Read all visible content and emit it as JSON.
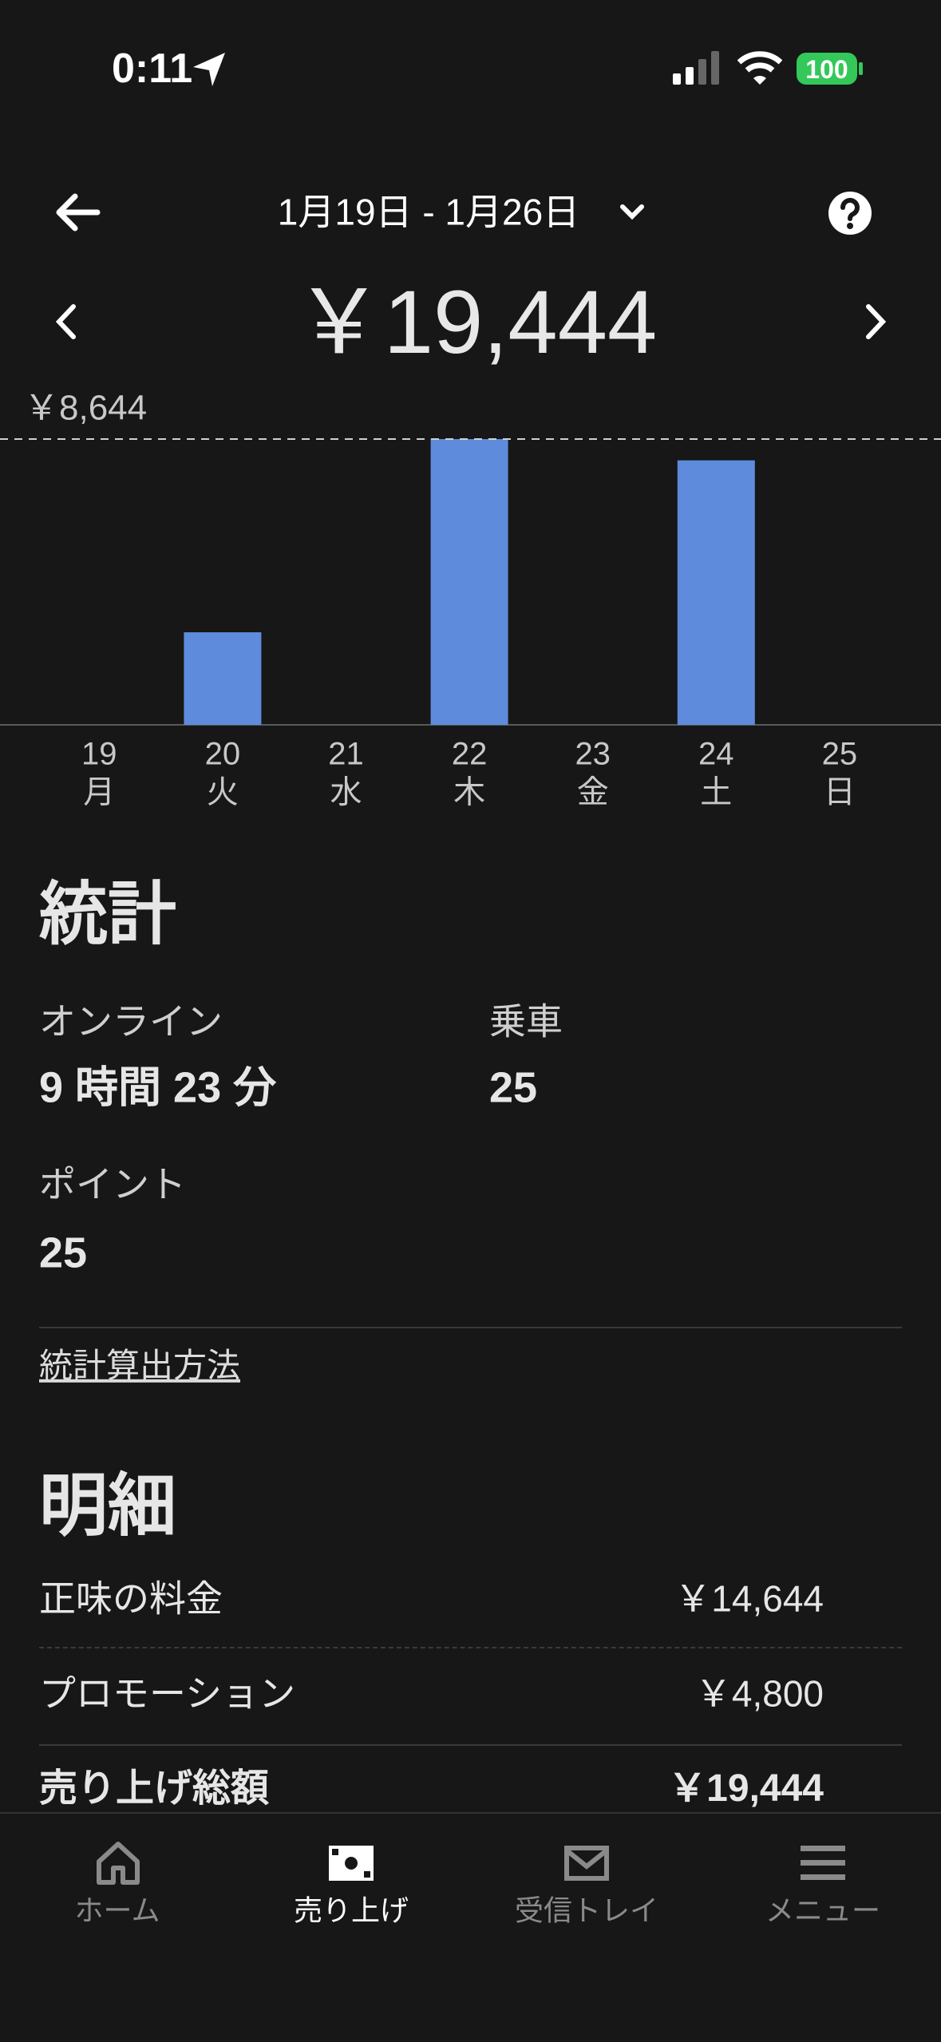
{
  "status_bar": {
    "time": "0:11",
    "battery": "100"
  },
  "header": {
    "date_range": "1月19日 - 1月26日",
    "total": "￥19,444"
  },
  "chart_data": {
    "type": "bar",
    "categories": [
      "19",
      "20",
      "21",
      "22",
      "23",
      "24",
      "25"
    ],
    "weekdays": [
      "月",
      "火",
      "水",
      "木",
      "金",
      "土",
      "日"
    ],
    "values": [
      0,
      2800,
      0,
      8644,
      0,
      8000,
      0
    ],
    "color": "#5e8bdc",
    "ylim": [
      0,
      8644
    ],
    "reference_line": {
      "value": 8644,
      "label": "￥8,644"
    }
  },
  "stats": {
    "title": "統計",
    "items": [
      {
        "label": "オンライン",
        "value": "9 時間 23 分"
      },
      {
        "label": "乗車",
        "value": "25"
      },
      {
        "label": "ポイント",
        "value": "25"
      }
    ],
    "link": "統計算出方法"
  },
  "details": {
    "title": "明細",
    "rows": [
      {
        "label": "正味の料金",
        "value": "￥14,644"
      },
      {
        "label": "プロモーション",
        "value": "￥4,800"
      },
      {
        "label": "売り上げ総額",
        "value": "￥19,444"
      }
    ]
  },
  "nav": {
    "items": [
      {
        "label": "ホーム"
      },
      {
        "label": "売り上げ"
      },
      {
        "label": "受信トレイ"
      },
      {
        "label": "メニュー"
      }
    ],
    "active": 1
  }
}
